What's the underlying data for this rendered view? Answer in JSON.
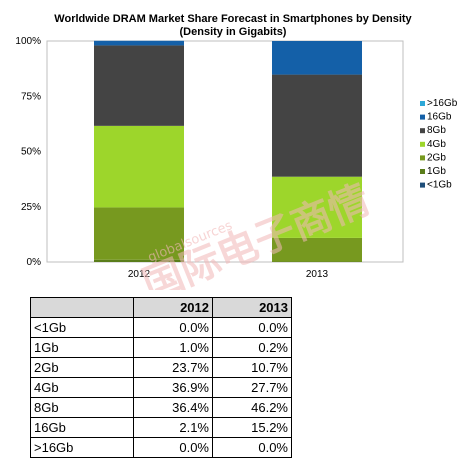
{
  "chart_data": {
    "type": "bar",
    "stacked": true,
    "title": "Worldwide DRAM Market Share Forecast in Smartphones by Density",
    "subtitle": "(Density in Gigabits)",
    "categories": [
      "2012",
      "2013"
    ],
    "series": [
      {
        "name": "<1Gb",
        "values": [
          0.0,
          0.0
        ],
        "color": "#1f4e79"
      },
      {
        "name": "1Gb",
        "values": [
          1.0,
          0.2
        ],
        "color": "#5a7d1a"
      },
      {
        "name": "2Gb",
        "values": [
          23.7,
          10.7
        ],
        "color": "#77991f"
      },
      {
        "name": "4Gb",
        "values": [
          36.9,
          27.7
        ],
        "color": "#9dd62b"
      },
      {
        "name": "8Gb",
        "values": [
          36.4,
          46.2
        ],
        "color": "#444444"
      },
      {
        "name": "16Gb",
        "values": [
          2.1,
          15.2
        ],
        "color": "#1460a8"
      },
      {
        "name": ">16Gb",
        "values": [
          0.0,
          0.0
        ],
        "color": "#2ea8d8"
      }
    ],
    "legend_order": [
      ">16Gb",
      "16Gb",
      "8Gb",
      "4Gb",
      "2Gb",
      "1Gb",
      "<1Gb"
    ],
    "legend_position": "right",
    "y_ticks": [
      "0%",
      "25%",
      "50%",
      "75%",
      "100%"
    ],
    "ylim": [
      0,
      100
    ],
    "grid": false
  },
  "table": {
    "headers": [
      "",
      "2012",
      "2013"
    ],
    "rows": [
      [
        "<1Gb",
        "0.0%",
        "0.0%"
      ],
      [
        "1Gb",
        "1.0%",
        "0.2%"
      ],
      [
        "2Gb",
        "23.7%",
        "10.7%"
      ],
      [
        "4Gb",
        "36.9%",
        "27.7%"
      ],
      [
        "8Gb",
        "36.4%",
        "46.2%"
      ],
      [
        "16Gb",
        "2.1%",
        "15.2%"
      ],
      [
        ">16Gb",
        "0.0%",
        "0.0%"
      ]
    ]
  },
  "watermark": {
    "chinese": "国际电子商情",
    "latin": "globalsources"
  }
}
